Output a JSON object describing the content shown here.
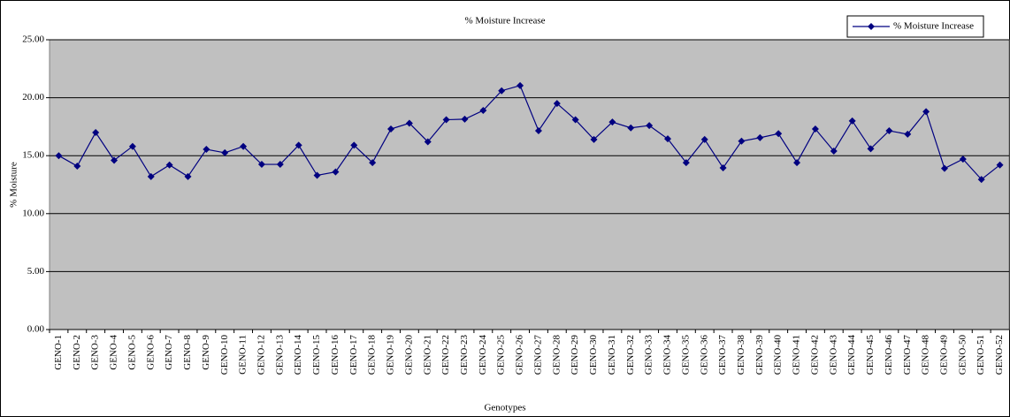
{
  "chart_data": {
    "type": "line",
    "title": "% Moisture Increase",
    "x_label": "Genotypes",
    "y_label": "% Moisture",
    "categories": [
      "GENO-1",
      "GENO-2",
      "GENO-3",
      "GENO-4",
      "GENO-5",
      "GENO-6",
      "GENO-7",
      "GENO-8",
      "GENO-9",
      "GENO-10",
      "GENO-11",
      "GENO-12",
      "GENO-13",
      "GENO-14",
      "GENO-15",
      "GENO-16",
      "GENO-17",
      "GENO-18",
      "GENO-19",
      "GENO-20",
      "GENO-21",
      "GENO-22",
      "GENO-23",
      "GENO-24",
      "GENO-25",
      "GENO-26",
      "GENO-27",
      "GENO-28",
      "GENO-29",
      "GENO-30",
      "GENO-31",
      "GENO-32",
      "GENO-33",
      "GENO-34",
      "GENO-35",
      "GENO-36",
      "GENO-37",
      "GENO-38",
      "GENO-39",
      "GENO-40",
      "GENO-41",
      "GENO-42",
      "GENO-43",
      "GENO-44",
      "GENO-45",
      "GENO-46",
      "GENO-47",
      "GENO-48",
      "GENO-49",
      "GENO-50",
      "GENO-51",
      "GENO-52"
    ],
    "series": [
      {
        "name": "% Moisture Increase",
        "color": "#000080",
        "values": [
          15.0,
          14.1,
          17.0,
          14.6,
          15.8,
          13.2,
          14.2,
          13.2,
          15.55,
          15.25,
          15.8,
          14.25,
          14.25,
          15.9,
          13.3,
          13.6,
          15.9,
          14.4,
          17.3,
          17.8,
          16.2,
          18.1,
          18.15,
          18.9,
          20.6,
          21.05,
          17.15,
          19.5,
          18.1,
          16.4,
          17.9,
          17.4,
          17.6,
          16.45,
          14.4,
          16.4,
          13.95,
          16.25,
          16.55,
          16.9,
          14.4,
          17.3,
          15.4,
          18.0,
          15.6,
          17.15,
          16.85,
          18.8,
          13.9,
          14.7,
          12.95,
          14.2
        ]
      }
    ],
    "ylim": [
      0,
      25
    ],
    "yticks": [
      {
        "value": 0,
        "label": "0.00"
      },
      {
        "value": 5,
        "label": "5.00"
      },
      {
        "value": 10,
        "label": "10.00"
      },
      {
        "value": 15,
        "label": "15.00"
      },
      {
        "value": 20,
        "label": "20.00"
      },
      {
        "value": 25,
        "label": "25.00"
      }
    ],
    "grid": true,
    "plot_background": "#c0c0c0",
    "legend": "top-right"
  }
}
